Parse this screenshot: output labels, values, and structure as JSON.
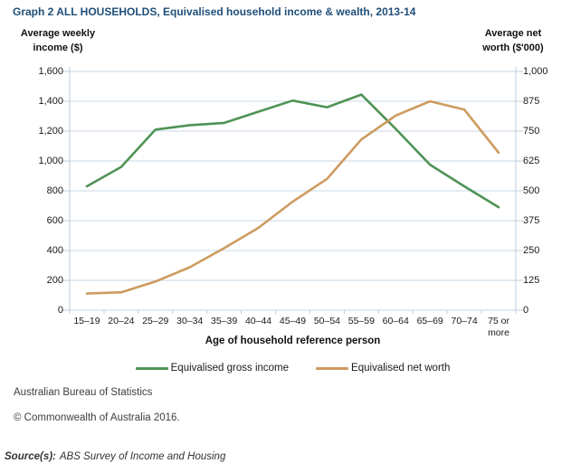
{
  "title": "Graph 2 ALL HOUSEHOLDS, Equivalised household income & wealth, 2013-14",
  "left_axis_title": "Average weekly\nincome ($)",
  "right_axis_title": "Average net\nworth ($'000)",
  "x_axis_title": "Age of household reference person",
  "legend": {
    "items": [
      "Equivalised gross income",
      "Equivalised net worth"
    ]
  },
  "footer": {
    "org": "Australian Bureau of Statistics",
    "copyright": "© Commonwealth of Australia 2016.",
    "source_label": "Source(s):",
    "source_text": "ABS Survey of Income and Housing"
  },
  "colors": {
    "title": "#1F4E79",
    "grid": "#C8D7E4",
    "axis": "#BCCDDC",
    "income_line": "#4F9355",
    "net_worth_line": "#CD9B5F",
    "text": "#1a1a1a",
    "footer_text": "#3d3d3d"
  },
  "chart_data": {
    "type": "line",
    "title": "Graph 2 ALL HOUSEHOLDS, Equivalised household income & wealth, 2013-14",
    "xlabel": "Age of household reference person",
    "categories": [
      "15–19",
      "20–24",
      "25–29",
      "30–34",
      "35–39",
      "40–44",
      "45–49",
      "50–54",
      "55–59",
      "60–64",
      "65–69",
      "70–74",
      "75 or more"
    ],
    "series": [
      {
        "name": "Equivalised gross income",
        "axis": "left",
        "color": "#4F9355",
        "values": [
          830,
          960,
          1210,
          1240,
          1255,
          1330,
          1405,
          1360,
          1445,
          1215,
          975,
          830,
          690
        ]
      },
      {
        "name": "Equivalised net worth",
        "axis": "right",
        "color": "#CD9B5F",
        "values": [
          70,
          75,
          120,
          180,
          260,
          345,
          455,
          550,
          715,
          815,
          875,
          840,
          660
        ]
      }
    ],
    "left_axis": {
      "label": "Average weekly income ($)",
      "min": 0,
      "max": 1600,
      "step": 200,
      "ticks": [
        "0",
        "200",
        "400",
        "600",
        "800",
        "1,000",
        "1,200",
        "1,400",
        "1,600"
      ]
    },
    "right_axis": {
      "label": "Average net worth ($'000)",
      "min": 0,
      "max": 1000,
      "step": 125,
      "ticks": [
        "0",
        "125",
        "250",
        "375",
        "500",
        "625",
        "750",
        "875",
        "1,000"
      ]
    },
    "grid": true,
    "legend_position": "bottom"
  }
}
